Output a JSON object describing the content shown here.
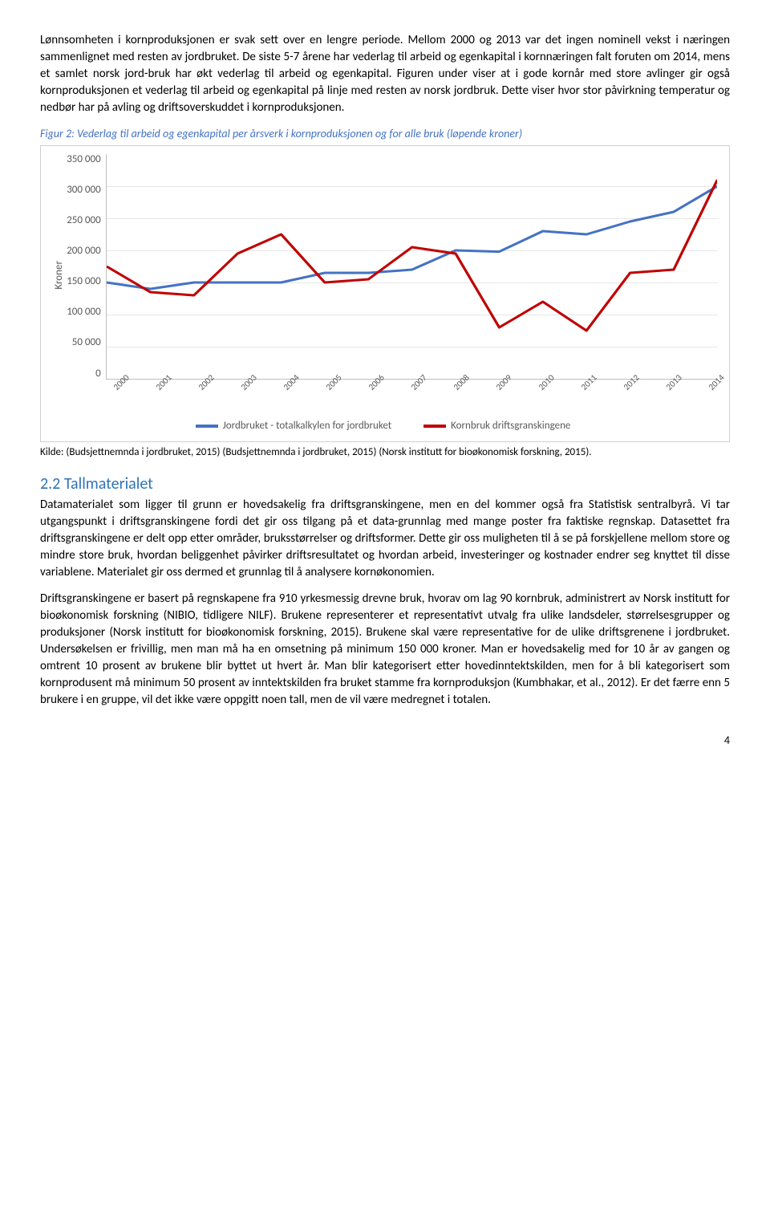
{
  "paragraphs": {
    "p1": "Lønnsomheten i kornproduksjonen er svak sett over en lengre periode. Mellom 2000 og 2013 var det ingen nominell vekst i næringen sammenlignet med resten av jordbruket. De siste 5-7 årene har vederlag til arbeid og egenkapital i kornnæringen falt foruten om 2014, mens et samlet norsk jord-bruk har økt vederlag til arbeid og egenkapital. Figuren under viser at i gode kornår med store avlinger gir også kornproduksjonen et vederlag til arbeid og egenkapital på linje med resten av norsk jordbruk. Dette viser hvor stor påvirkning temperatur og nedbør har på avling og driftsoverskuddet i kornproduksjonen.",
    "p2": "Datamaterialet som ligger til grunn er hovedsakelig fra driftsgranskingene, men en del kommer også fra Statistisk sentralbyrå. Vi tar utgangspunkt i driftsgranskingene fordi det gir oss tilgang på et data-grunnlag med mange poster fra faktiske regnskap. Datasettet fra driftsgranskingene er delt opp etter områder, bruksstørrelser og driftsformer. Dette gir oss muligheten til å se på forskjellene mellom store og mindre store bruk, hvordan beliggenhet påvirker driftsresultatet og hvordan arbeid, investeringer og kostnader endrer seg knyttet til disse variablene. Materialet gir oss dermed et grunnlag til å analysere kornøkonomien.",
    "p3": "Driftsgranskingene er basert på regnskapene fra 910 yrkesmessig drevne bruk, hvorav om lag 90 kornbruk, administrert av Norsk institutt for bioøkonomisk forskning (NIBIO, tidligere NILF). Brukene representerer et representativt utvalg fra ulike landsdeler, størrelsesgrupper og produksjoner (Norsk institutt for bioøkonomisk forskning, 2015). Brukene skal være representative for de ulike driftsgrenene i jordbruket. Undersøkelsen er frivillig, men man må ha en omsetning på minimum 150 000 kroner. Man er hovedsakelig med for 10 år av gangen og omtrent 10 prosent av brukene blir byttet ut hvert år. Man blir kategorisert etter hovedinntektskilden, men for å bli kategorisert som kornprodusent må minimum 50 prosent av inntektskilden fra bruket stamme fra kornproduksjon (Kumbhakar, et al., 2012). Er det færre enn 5 brukere i en gruppe, vil det ikke være oppgitt noen tall, men de vil være medregnet i totalen."
  },
  "figure": {
    "caption": "Figur 2: Vederlag til arbeid og egenkapital per årsverk i kornproduksjonen og for alle bruk (løpende kroner)",
    "source": "Kilde: (Budsjettnemnda i jordbruket, 2015) (Budsjettnemnda i jordbruket, 2015) (Norsk institutt for bioøkonomisk forskning, 2015).",
    "chart": {
      "type": "line",
      "y_axis_title": "Kroner",
      "y_ticks": [
        "350 000",
        "300 000",
        "250 000",
        "200 000",
        "150 000",
        "100 000",
        "50 000",
        "0"
      ],
      "y_max": 350000,
      "y_min": 0,
      "x_labels": [
        "2000",
        "2001",
        "2002",
        "2003",
        "2004",
        "2005",
        "2006",
        "2007",
        "2008",
        "2009",
        "2010",
        "2011",
        "2012",
        "2013",
        "2014"
      ],
      "line_width": 3,
      "background_color": "#ffffff",
      "grid_color": "#e6e6e6",
      "axis_color": "#bfbfbf",
      "tick_font_color": "#595959",
      "tick_fontsize": 13,
      "series": [
        {
          "name": "Jordbruket - totalkalkylen for jordbruket",
          "color": "#4472c4",
          "values": [
            150000,
            140000,
            150000,
            150000,
            150000,
            165000,
            165000,
            170000,
            200000,
            198000,
            230000,
            225000,
            245000,
            260000,
            300000
          ]
        },
        {
          "name": "Kornbruk driftsgranskingene",
          "color": "#c00000",
          "values": [
            175000,
            135000,
            130000,
            195000,
            225000,
            150000,
            155000,
            205000,
            195000,
            80000,
            120000,
            75000,
            165000,
            170000,
            310000
          ]
        }
      ]
    }
  },
  "section": {
    "number": "2.2",
    "title": "Tallmaterialet"
  },
  "page_number": "4"
}
